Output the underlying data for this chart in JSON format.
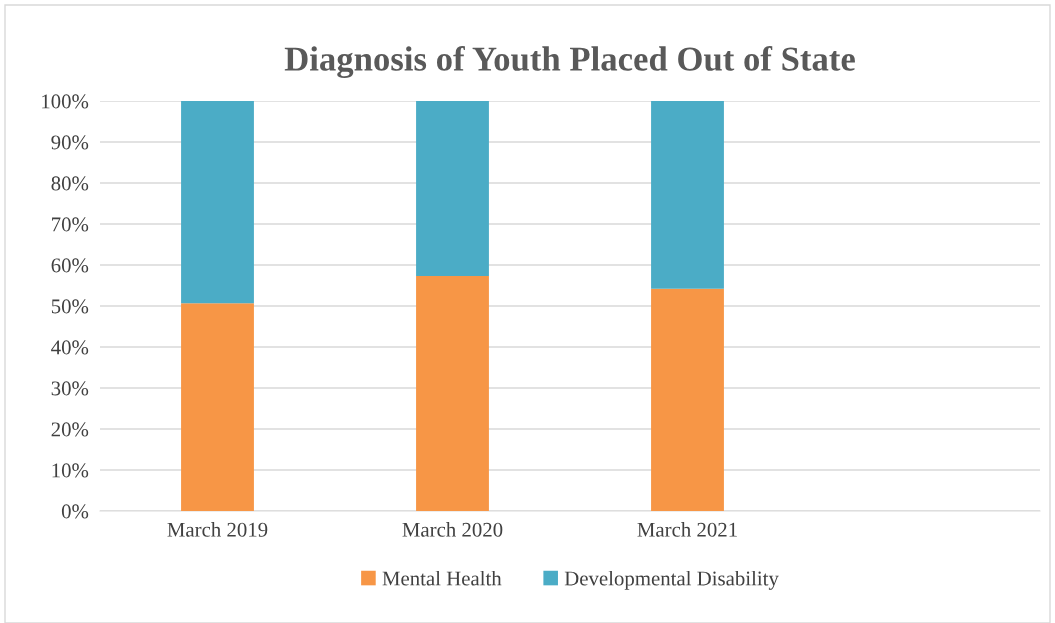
{
  "chart_data": {
    "type": "bar",
    "title": "Diagnosis of Youth Placed Out of State",
    "categories": [
      "March 2019",
      "March 2020",
      "March 2021",
      null
    ],
    "stacked": true,
    "series": [
      {
        "name": "Mental Health",
        "color": "#f79646",
        "values": [
          50.7,
          57.3,
          54.2,
          null
        ]
      },
      {
        "name": "Developmental Disability",
        "color": "#4bacc6",
        "values": [
          49.3,
          42.7,
          45.8,
          null
        ]
      }
    ],
    "ylim": [
      0,
      100
    ],
    "yticks": [
      {
        "value": 0,
        "label": "0%"
      },
      {
        "value": 10,
        "label": "10%"
      },
      {
        "value": 20,
        "label": "20%"
      },
      {
        "value": 30,
        "label": "30%"
      },
      {
        "value": 40,
        "label": "40%"
      },
      {
        "value": 50,
        "label": "50%"
      },
      {
        "value": 60,
        "label": "60%"
      },
      {
        "value": 70,
        "label": "70%"
      },
      {
        "value": 80,
        "label": "80%"
      },
      {
        "value": 90,
        "label": "90%"
      },
      {
        "value": 100,
        "label": "100%"
      }
    ],
    "grid": "y",
    "legend": "bottom"
  }
}
